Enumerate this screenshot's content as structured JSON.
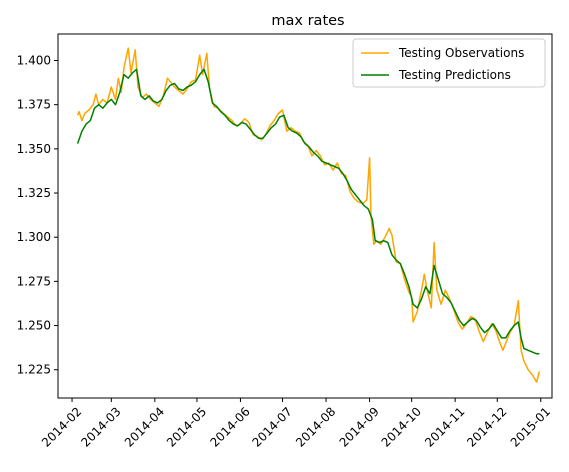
{
  "chart_data": {
    "type": "line",
    "title": "max rates",
    "xlabel": "",
    "ylabel": "",
    "x_ticks": [
      "2014-02",
      "2014-03",
      "2014-04",
      "2014-05",
      "2014-06",
      "2014-07",
      "2014-08",
      "2014-09",
      "2014-10",
      "2014-11",
      "2014-12",
      "2015-01"
    ],
    "y_ticks": [
      "1.225",
      "1.250",
      "1.275",
      "1.300",
      "1.325",
      "1.350",
      "1.375",
      "1.400"
    ],
    "xlim": [
      "2014-01-22",
      "2015-01-09"
    ],
    "ylim": [
      1.209,
      1.415
    ],
    "grid": false,
    "legend_position": "top-right",
    "colors": {
      "observations": "#ffa500",
      "predictions": "#008000"
    },
    "series": [
      {
        "name": "Testing Observations",
        "color": "#ffa500",
        "points": [
          [
            "2014-02-05",
            1.369
          ],
          [
            "2014-02-06",
            1.371
          ],
          [
            "2014-02-08",
            1.366
          ],
          [
            "2014-02-10",
            1.37
          ],
          [
            "2014-02-13",
            1.372
          ],
          [
            "2014-02-16",
            1.375
          ],
          [
            "2014-02-18",
            1.381
          ],
          [
            "2014-02-20",
            1.375
          ],
          [
            "2014-02-23",
            1.378
          ],
          [
            "2014-02-26",
            1.376
          ],
          [
            "2014-03-01",
            1.385
          ],
          [
            "2014-03-04",
            1.378
          ],
          [
            "2014-03-06",
            1.39
          ],
          [
            "2014-03-08",
            1.382
          ],
          [
            "2014-03-10",
            1.396
          ],
          [
            "2014-03-13",
            1.407
          ],
          [
            "2014-03-15",
            1.393
          ],
          [
            "2014-03-18",
            1.406
          ],
          [
            "2014-03-20",
            1.385
          ],
          [
            "2014-03-23",
            1.379
          ],
          [
            "2014-03-26",
            1.381
          ],
          [
            "2014-03-29",
            1.378
          ],
          [
            "2014-04-01",
            1.376
          ],
          [
            "2014-04-04",
            1.374
          ],
          [
            "2014-04-07",
            1.38
          ],
          [
            "2014-04-10",
            1.39
          ],
          [
            "2014-04-12",
            1.388
          ],
          [
            "2014-04-15",
            1.385
          ],
          [
            "2014-04-18",
            1.383
          ],
          [
            "2014-04-21",
            1.381
          ],
          [
            "2014-04-24",
            1.384
          ],
          [
            "2014-04-27",
            1.388
          ],
          [
            "2014-04-30",
            1.389
          ],
          [
            "2014-05-03",
            1.403
          ],
          [
            "2014-05-05",
            1.392
          ],
          [
            "2014-05-08",
            1.404
          ],
          [
            "2014-05-10",
            1.384
          ],
          [
            "2014-05-13",
            1.374
          ],
          [
            "2014-05-16",
            1.373
          ],
          [
            "2014-05-20",
            1.37
          ],
          [
            "2014-05-23",
            1.368
          ],
          [
            "2014-05-26",
            1.366
          ],
          [
            "2014-05-29",
            1.363
          ],
          [
            "2014-06-01",
            1.364
          ],
          [
            "2014-06-04",
            1.367
          ],
          [
            "2014-06-07",
            1.365
          ],
          [
            "2014-06-10",
            1.358
          ],
          [
            "2014-06-13",
            1.357
          ],
          [
            "2014-06-16",
            1.355
          ],
          [
            "2014-06-19",
            1.358
          ],
          [
            "2014-06-22",
            1.363
          ],
          [
            "2014-06-25",
            1.366
          ],
          [
            "2014-06-28",
            1.37
          ],
          [
            "2014-07-01",
            1.372
          ],
          [
            "2014-07-04",
            1.36
          ],
          [
            "2014-07-07",
            1.362
          ],
          [
            "2014-07-10",
            1.36
          ],
          [
            "2014-07-13",
            1.359
          ],
          [
            "2014-07-16",
            1.354
          ],
          [
            "2014-07-19",
            1.352
          ],
          [
            "2014-07-22",
            1.346
          ],
          [
            "2014-07-25",
            1.349
          ],
          [
            "2014-07-28",
            1.346
          ],
          [
            "2014-07-31",
            1.341
          ],
          [
            "2014-08-03",
            1.342
          ],
          [
            "2014-08-06",
            1.338
          ],
          [
            "2014-08-09",
            1.342
          ],
          [
            "2014-08-12",
            1.336
          ],
          [
            "2014-08-15",
            1.335
          ],
          [
            "2014-08-18",
            1.326
          ],
          [
            "2014-08-21",
            1.322
          ],
          [
            "2014-08-24",
            1.32
          ],
          [
            "2014-08-27",
            1.319
          ],
          [
            "2014-08-30",
            1.321
          ],
          [
            "2014-09-01",
            1.345
          ],
          [
            "2014-09-02",
            1.312
          ],
          [
            "2014-09-04",
            1.296
          ],
          [
            "2014-09-06",
            1.298
          ],
          [
            "2014-09-09",
            1.296
          ],
          [
            "2014-09-12",
            1.3
          ],
          [
            "2014-09-15",
            1.305
          ],
          [
            "2014-09-17",
            1.301
          ],
          [
            "2014-09-20",
            1.286
          ],
          [
            "2014-09-23",
            1.285
          ],
          [
            "2014-09-26",
            1.276
          ],
          [
            "2014-09-29",
            1.269
          ],
          [
            "2014-10-01",
            1.266
          ],
          [
            "2014-10-02",
            1.252
          ],
          [
            "2014-10-05",
            1.258
          ],
          [
            "2014-10-08",
            1.27
          ],
          [
            "2014-10-10",
            1.279
          ],
          [
            "2014-10-12",
            1.27
          ],
          [
            "2014-10-15",
            1.26
          ],
          [
            "2014-10-17",
            1.297
          ],
          [
            "2014-10-19",
            1.27
          ],
          [
            "2014-10-22",
            1.262
          ],
          [
            "2014-10-25",
            1.27
          ],
          [
            "2014-10-28",
            1.265
          ],
          [
            "2014-10-31",
            1.259
          ],
          [
            "2014-11-03",
            1.252
          ],
          [
            "2014-11-06",
            1.248
          ],
          [
            "2014-11-09",
            1.251
          ],
          [
            "2014-11-12",
            1.255
          ],
          [
            "2014-11-15",
            1.254
          ],
          [
            "2014-11-18",
            1.247
          ],
          [
            "2014-11-21",
            1.241
          ],
          [
            "2014-11-24",
            1.246
          ],
          [
            "2014-11-27",
            1.251
          ],
          [
            "2014-11-30",
            1.247
          ],
          [
            "2014-12-03",
            1.24
          ],
          [
            "2014-12-05",
            1.236
          ],
          [
            "2014-12-08",
            1.242
          ],
          [
            "2014-12-10",
            1.246
          ],
          [
            "2014-12-13",
            1.25
          ],
          [
            "2014-12-16",
            1.264
          ],
          [
            "2014-12-18",
            1.236
          ],
          [
            "2014-12-20",
            1.23
          ],
          [
            "2014-12-23",
            1.225
          ],
          [
            "2014-12-26",
            1.222
          ],
          [
            "2014-12-29",
            1.218
          ],
          [
            "2014-12-31",
            1.224
          ]
        ]
      },
      {
        "name": "Testing Predictions",
        "color": "#008000",
        "points": [
          [
            "2014-02-05",
            1.353
          ],
          [
            "2014-02-08",
            1.36
          ],
          [
            "2014-02-11",
            1.364
          ],
          [
            "2014-02-14",
            1.366
          ],
          [
            "2014-02-17",
            1.373
          ],
          [
            "2014-02-20",
            1.375
          ],
          [
            "2014-02-23",
            1.373
          ],
          [
            "2014-02-26",
            1.376
          ],
          [
            "2014-03-01",
            1.378
          ],
          [
            "2014-03-04",
            1.375
          ],
          [
            "2014-03-07",
            1.382
          ],
          [
            "2014-03-10",
            1.392
          ],
          [
            "2014-03-13",
            1.39
          ],
          [
            "2014-03-16",
            1.393
          ],
          [
            "2014-03-19",
            1.395
          ],
          [
            "2014-03-22",
            1.38
          ],
          [
            "2014-03-25",
            1.378
          ],
          [
            "2014-03-28",
            1.38
          ],
          [
            "2014-03-31",
            1.377
          ],
          [
            "2014-04-03",
            1.376
          ],
          [
            "2014-04-06",
            1.378
          ],
          [
            "2014-04-09",
            1.383
          ],
          [
            "2014-04-12",
            1.386
          ],
          [
            "2014-04-15",
            1.387
          ],
          [
            "2014-04-18",
            1.384
          ],
          [
            "2014-04-21",
            1.383
          ],
          [
            "2014-04-24",
            1.385
          ],
          [
            "2014-04-27",
            1.386
          ],
          [
            "2014-04-30",
            1.388
          ],
          [
            "2014-05-03",
            1.392
          ],
          [
            "2014-05-06",
            1.395
          ],
          [
            "2014-05-09",
            1.388
          ],
          [
            "2014-05-12",
            1.376
          ],
          [
            "2014-05-15",
            1.374
          ],
          [
            "2014-05-18",
            1.371
          ],
          [
            "2014-05-21",
            1.369
          ],
          [
            "2014-05-24",
            1.366
          ],
          [
            "2014-05-27",
            1.364
          ],
          [
            "2014-05-30",
            1.363
          ],
          [
            "2014-06-02",
            1.365
          ],
          [
            "2014-06-05",
            1.364
          ],
          [
            "2014-06-08",
            1.361
          ],
          [
            "2014-06-11",
            1.358
          ],
          [
            "2014-06-14",
            1.356
          ],
          [
            "2014-06-17",
            1.356
          ],
          [
            "2014-06-20",
            1.359
          ],
          [
            "2014-06-23",
            1.362
          ],
          [
            "2014-06-26",
            1.364
          ],
          [
            "2014-06-29",
            1.368
          ],
          [
            "2014-07-02",
            1.369
          ],
          [
            "2014-07-05",
            1.362
          ],
          [
            "2014-07-08",
            1.36
          ],
          [
            "2014-07-11",
            1.359
          ],
          [
            "2014-07-14",
            1.357
          ],
          [
            "2014-07-17",
            1.353
          ],
          [
            "2014-07-20",
            1.351
          ],
          [
            "2014-07-23",
            1.348
          ],
          [
            "2014-07-26",
            1.346
          ],
          [
            "2014-07-29",
            1.343
          ],
          [
            "2014-08-01",
            1.342
          ],
          [
            "2014-08-04",
            1.341
          ],
          [
            "2014-08-07",
            1.34
          ],
          [
            "2014-08-10",
            1.339
          ],
          [
            "2014-08-13",
            1.336
          ],
          [
            "2014-08-16",
            1.332
          ],
          [
            "2014-08-19",
            1.327
          ],
          [
            "2014-08-22",
            1.324
          ],
          [
            "2014-08-25",
            1.321
          ],
          [
            "2014-08-28",
            1.318
          ],
          [
            "2014-08-31",
            1.316
          ],
          [
            "2014-09-03",
            1.31
          ],
          [
            "2014-09-05",
            1.298
          ],
          [
            "2014-09-08",
            1.297
          ],
          [
            "2014-09-11",
            1.298
          ],
          [
            "2014-09-14",
            1.297
          ],
          [
            "2014-09-17",
            1.29
          ],
          [
            "2014-09-20",
            1.287
          ],
          [
            "2014-09-23",
            1.285
          ],
          [
            "2014-09-26",
            1.279
          ],
          [
            "2014-09-29",
            1.272
          ],
          [
            "2014-10-02",
            1.262
          ],
          [
            "2014-10-05",
            1.26
          ],
          [
            "2014-10-08",
            1.265
          ],
          [
            "2014-10-11",
            1.272
          ],
          [
            "2014-10-14",
            1.268
          ],
          [
            "2014-10-17",
            1.284
          ],
          [
            "2014-10-20",
            1.276
          ],
          [
            "2014-10-23",
            1.268
          ],
          [
            "2014-10-26",
            1.266
          ],
          [
            "2014-10-29",
            1.263
          ],
          [
            "2014-11-01",
            1.258
          ],
          [
            "2014-11-04",
            1.253
          ],
          [
            "2014-11-07",
            1.25
          ],
          [
            "2014-11-10",
            1.252
          ],
          [
            "2014-11-13",
            1.254
          ],
          [
            "2014-11-16",
            1.253
          ],
          [
            "2014-11-19",
            1.249
          ],
          [
            "2014-11-22",
            1.246
          ],
          [
            "2014-11-25",
            1.248
          ],
          [
            "2014-11-28",
            1.251
          ],
          [
            "2014-12-01",
            1.247
          ],
          [
            "2014-12-04",
            1.243
          ],
          [
            "2014-12-07",
            1.243
          ],
          [
            "2014-12-10",
            1.247
          ],
          [
            "2014-12-13",
            1.25
          ],
          [
            "2014-12-16",
            1.252
          ],
          [
            "2014-12-18",
            1.243
          ],
          [
            "2014-12-20",
            1.237
          ],
          [
            "2014-12-23",
            1.236
          ],
          [
            "2014-12-26",
            1.235
          ],
          [
            "2014-12-29",
            1.234
          ],
          [
            "2014-12-31",
            1.234
          ]
        ]
      }
    ]
  }
}
